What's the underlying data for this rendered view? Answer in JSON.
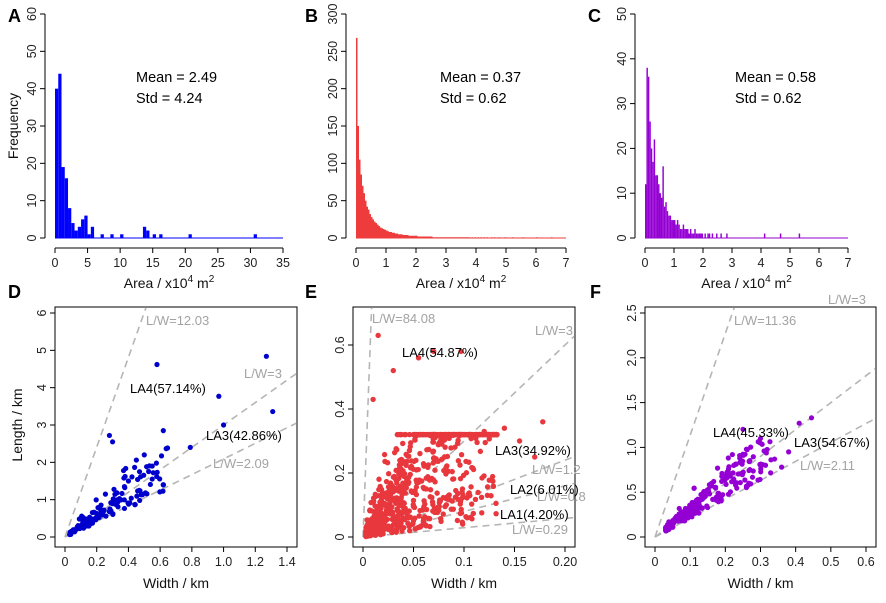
{
  "figure": {
    "panels": [
      "A",
      "B",
      "C",
      "D",
      "E",
      "F"
    ],
    "hist_xlabel_prefix": "Area / x10",
    "hist_xlabel_sup": "4",
    "hist_xlabel_unit": "m",
    "hist_xlabel_unit_sup": "2"
  },
  "chart_data": [
    {
      "panel": "A",
      "type": "bar",
      "color": "#0000ff",
      "ylabel": "Frequency",
      "xlabel": "Area / x10^4 m^2",
      "xlim": [
        0,
        35
      ],
      "ylim": [
        0,
        60
      ],
      "xticks": [
        0,
        5,
        10,
        15,
        20,
        25,
        30,
        35
      ],
      "yticks": [
        0,
        10,
        20,
        30,
        40,
        50,
        60
      ],
      "bin_width": 0.5,
      "bin_start": 0,
      "values": [
        40,
        44,
        19,
        16,
        8,
        4,
        2,
        3,
        5,
        6,
        1,
        3,
        0,
        0,
        1,
        0,
        0,
        1,
        0,
        0,
        1,
        0,
        0,
        0,
        0,
        0,
        0,
        3,
        2,
        0,
        1,
        0,
        1,
        0,
        0,
        0,
        0,
        0,
        0,
        0,
        0,
        1,
        0,
        0,
        0,
        0,
        0,
        0,
        0,
        0,
        0,
        0,
        0,
        0,
        0,
        0,
        0,
        0,
        0,
        0,
        0,
        1
      ],
      "mean_label": "Mean = 2.49",
      "std_label": "Std   = 4.24"
    },
    {
      "panel": "B",
      "type": "bar",
      "color": "#ee3b3b",
      "ylabel": "",
      "xlabel": "Area / x10^4 m^2",
      "xlim": [
        0,
        7
      ],
      "ylim": [
        0,
        300
      ],
      "xticks": [
        0,
        1,
        2,
        3,
        4,
        5,
        6,
        7
      ],
      "yticks": [
        0,
        50,
        100,
        150,
        200,
        250,
        300
      ],
      "bin_width": 0.05,
      "bin_start": 0,
      "values": [
        268,
        150,
        105,
        85,
        70,
        60,
        50,
        42,
        38,
        32,
        28,
        25,
        22,
        20,
        18,
        16,
        14,
        13,
        12,
        11,
        10,
        9,
        8,
        8,
        7,
        7,
        6,
        6,
        5,
        5,
        5,
        4,
        4,
        4,
        4,
        3,
        3,
        3,
        3,
        3,
        3,
        2,
        2,
        2,
        2,
        2,
        2,
        2,
        2,
        2,
        2,
        1,
        1,
        1,
        1,
        1,
        1,
        1,
        1,
        1,
        1,
        1,
        1,
        1,
        1,
        1,
        1,
        1,
        1,
        1,
        1,
        1,
        1,
        1,
        1,
        1,
        0,
        1,
        0,
        1,
        0,
        1,
        0,
        1,
        0,
        1,
        0,
        1,
        0,
        0,
        1,
        0,
        1,
        0,
        0,
        1,
        0,
        0,
        0,
        1,
        0,
        0,
        0,
        0,
        1,
        0,
        0,
        0,
        0,
        0,
        0,
        1,
        0,
        0,
        0,
        0,
        0,
        0,
        0,
        0,
        1,
        0,
        0,
        0,
        0,
        0,
        0,
        0,
        0,
        0,
        1
      ],
      "mean_label": "Mean = 0.37",
      "std_label": "Std   = 0.62"
    },
    {
      "panel": "C",
      "type": "bar",
      "color": "#9400d3",
      "ylabel": "",
      "xlabel": "Area / x10^4 m^2",
      "xlim": [
        0,
        7
      ],
      "ylim": [
        0,
        50
      ],
      "xticks": [
        0,
        1,
        2,
        3,
        4,
        5,
        6,
        7
      ],
      "yticks": [
        0,
        10,
        20,
        30,
        40,
        50
      ],
      "bin_width": 0.05,
      "bin_start": 0,
      "values": [
        12,
        38,
        36,
        26,
        20,
        17,
        22,
        14,
        14,
        12,
        10,
        9,
        16,
        7,
        8,
        6,
        5,
        5,
        4,
        4,
        4,
        3,
        4,
        3,
        2,
        2,
        3,
        2,
        2,
        2,
        1,
        2,
        1,
        1,
        2,
        1,
        1,
        1,
        1,
        1,
        0,
        1,
        0,
        1,
        1,
        0,
        1,
        0,
        0,
        1,
        0,
        0,
        1,
        0,
        0,
        0,
        1,
        0,
        0,
        0,
        0,
        0,
        0,
        0,
        0,
        0,
        0,
        0,
        0,
        0,
        0,
        0,
        0,
        0,
        0,
        0,
        0,
        0,
        0,
        0,
        0,
        0,
        1,
        0,
        0,
        0,
        0,
        0,
        0,
        0,
        0,
        0,
        0,
        1,
        0,
        0,
        0,
        0,
        0,
        0,
        0,
        0,
        0,
        0,
        0,
        0,
        1
      ],
      "mean_label": "Mean = 0.58",
      "std_label": "Std   = 0.62"
    },
    {
      "panel": "D",
      "type": "scatter",
      "color": "#0000cd",
      "ylabel": "Length / km",
      "xlabel": "Width / km",
      "xlim": [
        0,
        1.4
      ],
      "ylim": [
        0,
        6
      ],
      "xticks": [
        0,
        0.2,
        0.4,
        0.6,
        0.8,
        1.0,
        1.2,
        1.4
      ],
      "xtick_labels": [
        "0",
        "0.2",
        "0.4",
        "0.6",
        "0.8",
        "1.0",
        "1.2",
        "1.4"
      ],
      "yticks": [
        0,
        1,
        2,
        3,
        4,
        5,
        6
      ],
      "ytick_labels": [
        "0",
        "1",
        "2",
        "3",
        "4",
        "5",
        "6"
      ],
      "ref_lines": [
        {
          "ratio": 12.03,
          "label": "L/W=12.03"
        },
        {
          "ratio": 3,
          "label": "L/W=3"
        },
        {
          "ratio": 2.09,
          "label": "L/W=2.09"
        }
      ],
      "groups": [
        {
          "label": "LA4(57.14%)"
        },
        {
          "label": "LA3(42.86%)"
        }
      ],
      "n_points": 140,
      "point_seed": 11,
      "points": [
        [
          0.58,
          4.62
        ],
        [
          1.27,
          4.84
        ],
        [
          1.31,
          3.36
        ],
        [
          0.97,
          3.77
        ],
        [
          1.0,
          3.0
        ],
        [
          0.28,
          2.72
        ],
        [
          0.3,
          2.55
        ],
        [
          0.62,
          2.85
        ],
        [
          0.79,
          2.4
        ],
        [
          0.45,
          2.06
        ],
        [
          0.5,
          2.2
        ],
        [
          0.55,
          1.9
        ],
        [
          0.47,
          1.75
        ],
        [
          0.4,
          1.5
        ],
        [
          0.62,
          1.4
        ]
      ]
    },
    {
      "panel": "E",
      "type": "scatter",
      "color": "#e8383d",
      "ylabel": "",
      "xlabel": "Width / km",
      "xlim": [
        0,
        0.2
      ],
      "ylim": [
        0,
        0.7
      ],
      "xticks": [
        0,
        0.05,
        0.1,
        0.15,
        0.2
      ],
      "xtick_labels": [
        "0",
        "0.05",
        "0.1",
        "0.15",
        "0.20"
      ],
      "yticks": [
        0,
        0.2,
        0.4,
        0.6
      ],
      "ytick_labels": [
        "0",
        "0.2",
        "0.4",
        "0.6"
      ],
      "ref_lines": [
        {
          "ratio": 84.08,
          "label": "L/W=84.08"
        },
        {
          "ratio": 3,
          "label": "L/W=3"
        },
        {
          "ratio": 1.2,
          "label": "L/W=1.2"
        },
        {
          "ratio": 0.8,
          "label": "L/W=0.8"
        },
        {
          "ratio": 0.29,
          "label": "L/W=0.29"
        }
      ],
      "groups": [
        {
          "label": "LA4(54.87%)"
        },
        {
          "label": "LA3(34.92%)"
        },
        {
          "label": "LA2(6.01%)"
        },
        {
          "label": "LA1(4.20%)"
        }
      ],
      "n_points": 900,
      "point_seed": 23,
      "points": [
        [
          0.015,
          0.63
        ],
        [
          0.055,
          0.56
        ],
        [
          0.07,
          0.58
        ],
        [
          0.097,
          0.58
        ],
        [
          0.01,
          0.43
        ],
        [
          0.03,
          0.52
        ],
        [
          0.178,
          0.36
        ],
        [
          0.155,
          0.3
        ],
        [
          0.14,
          0.34
        ],
        [
          0.17,
          0.25
        ],
        [
          0.12,
          0.33
        ]
      ]
    },
    {
      "panel": "F",
      "type": "scatter",
      "color": "#9400d3",
      "ylabel": "",
      "xlabel": "Width / km",
      "xlim": [
        0,
        0.6
      ],
      "ylim": [
        0,
        2.5
      ],
      "xticks": [
        0,
        0.1,
        0.2,
        0.3,
        0.4,
        0.5,
        0.6
      ],
      "xtick_labels": [
        "0",
        "0.1",
        "0.2",
        "0.3",
        "0.4",
        "0.5",
        "0.6"
      ],
      "yticks": [
        0,
        0.5,
        1.0,
        1.5,
        2.0,
        2.5
      ],
      "ytick_labels": [
        "0",
        "0.5",
        "1.0",
        "1.5",
        "2.0",
        "2.5"
      ],
      "ref_lines": [
        {
          "ratio": 11.36,
          "label": "L/W=11.36"
        },
        {
          "ratio": 3,
          "label": "L/W=3"
        },
        {
          "ratio": 2.11,
          "label": "L/W=2.11"
        }
      ],
      "groups": [
        {
          "label": "LA4(45.33%)"
        },
        {
          "label": "LA3(54.67%)"
        }
      ],
      "n_points": 220,
      "point_seed": 37,
      "points": [
        [
          0.445,
          1.33
        ],
        [
          0.41,
          1.27
        ],
        [
          0.3,
          1.1
        ],
        [
          0.38,
          0.95
        ],
        [
          0.34,
          0.87
        ],
        [
          0.36,
          0.78
        ],
        [
          0.26,
          0.98
        ],
        [
          0.22,
          0.92
        ],
        [
          0.3,
          0.8
        ]
      ]
    }
  ]
}
